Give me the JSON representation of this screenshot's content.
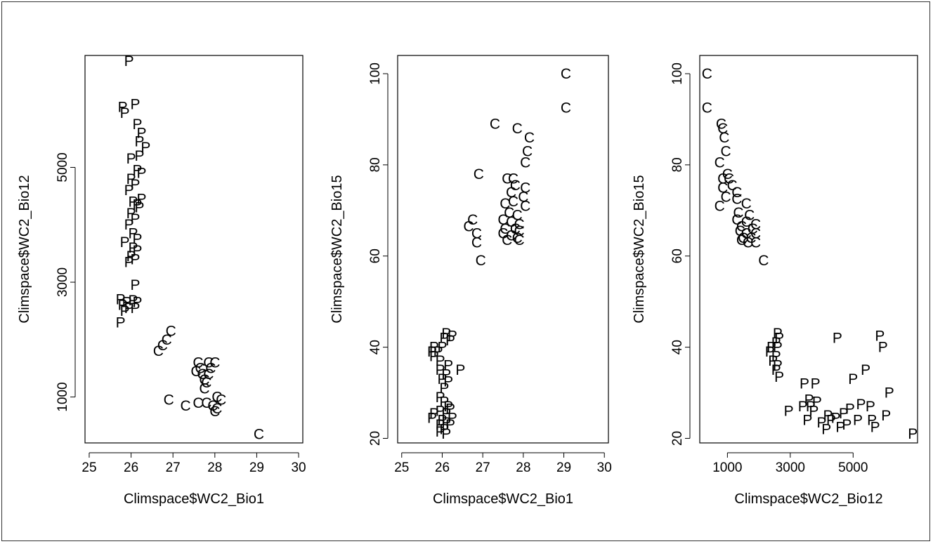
{
  "chart_data": [
    {
      "type": "scatter",
      "xlabel": "Climspace$WC2_Bio1",
      "ylabel": "Climspace$WC2_Bio12",
      "xlim": [
        24.9,
        30.1
      ],
      "ylim": [
        200,
        6950
      ],
      "xticks": [
        25,
        26,
        27,
        28,
        29,
        30
      ],
      "yticks": [
        1000,
        3000,
        5000
      ],
      "points": [
        {
          "x": 25.95,
          "y": 6850,
          "label": "P"
        },
        {
          "x": 25.8,
          "y": 6050,
          "label": "P"
        },
        {
          "x": 26.1,
          "y": 6100,
          "label": "P"
        },
        {
          "x": 25.85,
          "y": 5950,
          "label": "P"
        },
        {
          "x": 26.15,
          "y": 5750,
          "label": "P"
        },
        {
          "x": 26.25,
          "y": 5600,
          "label": "P"
        },
        {
          "x": 26.2,
          "y": 5450,
          "label": "P"
        },
        {
          "x": 26.35,
          "y": 5350,
          "label": "P"
        },
        {
          "x": 26.2,
          "y": 5200,
          "label": "P"
        },
        {
          "x": 26.0,
          "y": 5150,
          "label": "P"
        },
        {
          "x": 26.15,
          "y": 4950,
          "label": "P"
        },
        {
          "x": 26.25,
          "y": 4900,
          "label": "P"
        },
        {
          "x": 26.0,
          "y": 4800,
          "label": "P"
        },
        {
          "x": 26.1,
          "y": 4700,
          "label": "P"
        },
        {
          "x": 25.95,
          "y": 4600,
          "label": "P"
        },
        {
          "x": 26.25,
          "y": 4450,
          "label": "P"
        },
        {
          "x": 26.05,
          "y": 4400,
          "label": "P"
        },
        {
          "x": 26.15,
          "y": 4350,
          "label": "P"
        },
        {
          "x": 26.2,
          "y": 4300,
          "label": "P"
        },
        {
          "x": 26.0,
          "y": 4200,
          "label": "P"
        },
        {
          "x": 26.1,
          "y": 4100,
          "label": "P"
        },
        {
          "x": 25.95,
          "y": 4000,
          "label": "P"
        },
        {
          "x": 26.05,
          "y": 3850,
          "label": "P"
        },
        {
          "x": 26.15,
          "y": 3750,
          "label": "P"
        },
        {
          "x": 25.85,
          "y": 3700,
          "label": "P"
        },
        {
          "x": 26.05,
          "y": 3600,
          "label": "P"
        },
        {
          "x": 26.15,
          "y": 3550,
          "label": "P"
        },
        {
          "x": 26.0,
          "y": 3450,
          "label": "P"
        },
        {
          "x": 26.1,
          "y": 3400,
          "label": "P"
        },
        {
          "x": 25.95,
          "y": 3350,
          "label": "P"
        },
        {
          "x": 26.1,
          "y": 2950,
          "label": "P"
        },
        {
          "x": 25.75,
          "y": 2700,
          "label": "P"
        },
        {
          "x": 25.9,
          "y": 2650,
          "label": "P"
        },
        {
          "x": 26.05,
          "y": 2680,
          "label": "P"
        },
        {
          "x": 26.15,
          "y": 2650,
          "label": "P"
        },
        {
          "x": 25.8,
          "y": 2600,
          "label": "P"
        },
        {
          "x": 25.95,
          "y": 2550,
          "label": "P"
        },
        {
          "x": 26.1,
          "y": 2550,
          "label": "P"
        },
        {
          "x": 25.85,
          "y": 2500,
          "label": "P"
        },
        {
          "x": 25.75,
          "y": 2300,
          "label": "P"
        },
        {
          "x": 26.95,
          "y": 2150,
          "label": "C"
        },
        {
          "x": 26.85,
          "y": 2000,
          "label": "C"
        },
        {
          "x": 26.75,
          "y": 1900,
          "label": "C"
        },
        {
          "x": 26.65,
          "y": 1800,
          "label": "C"
        },
        {
          "x": 27.6,
          "y": 1600,
          "label": "C"
        },
        {
          "x": 27.85,
          "y": 1600,
          "label": "C"
        },
        {
          "x": 28.0,
          "y": 1600,
          "label": "C"
        },
        {
          "x": 27.65,
          "y": 1500,
          "label": "C"
        },
        {
          "x": 27.9,
          "y": 1500,
          "label": "C"
        },
        {
          "x": 27.55,
          "y": 1450,
          "label": "C"
        },
        {
          "x": 27.7,
          "y": 1400,
          "label": "C"
        },
        {
          "x": 27.85,
          "y": 1400,
          "label": "C"
        },
        {
          "x": 27.75,
          "y": 1300,
          "label": "C"
        },
        {
          "x": 27.8,
          "y": 1250,
          "label": "C"
        },
        {
          "x": 27.75,
          "y": 1150,
          "label": "C"
        },
        {
          "x": 26.9,
          "y": 950,
          "label": "C"
        },
        {
          "x": 27.6,
          "y": 900,
          "label": "C"
        },
        {
          "x": 27.8,
          "y": 900,
          "label": "C"
        },
        {
          "x": 28.05,
          "y": 1000,
          "label": "C"
        },
        {
          "x": 28.15,
          "y": 950,
          "label": "C"
        },
        {
          "x": 27.3,
          "y": 850,
          "label": "C"
        },
        {
          "x": 27.95,
          "y": 850,
          "label": "C"
        },
        {
          "x": 28.05,
          "y": 800,
          "label": "C"
        },
        {
          "x": 28.0,
          "y": 750,
          "label": "C"
        },
        {
          "x": 29.05,
          "y": 350,
          "label": "C"
        }
      ]
    },
    {
      "type": "scatter",
      "xlabel": "Climspace$WC2_Bio1",
      "ylabel": "Climspace$WC2_Bio15",
      "xlim": [
        24.9,
        30.1
      ],
      "ylim": [
        19,
        104
      ],
      "xticks": [
        25,
        26,
        27,
        28,
        29,
        30
      ],
      "yticks": [
        20,
        40,
        60,
        80,
        100
      ],
      "points": [
        {
          "x": 29.05,
          "y": 100,
          "label": "C"
        },
        {
          "x": 29.05,
          "y": 92.5,
          "label": "C"
        },
        {
          "x": 27.3,
          "y": 89,
          "label": "C"
        },
        {
          "x": 27.85,
          "y": 88,
          "label": "C"
        },
        {
          "x": 28.15,
          "y": 86,
          "label": "C"
        },
        {
          "x": 28.1,
          "y": 83,
          "label": "C"
        },
        {
          "x": 28.05,
          "y": 80.5,
          "label": "C"
        },
        {
          "x": 26.9,
          "y": 78,
          "label": "C"
        },
        {
          "x": 27.6,
          "y": 77,
          "label": "C"
        },
        {
          "x": 27.75,
          "y": 77,
          "label": "C"
        },
        {
          "x": 27.8,
          "y": 75.5,
          "label": "C"
        },
        {
          "x": 28.05,
          "y": 75,
          "label": "C"
        },
        {
          "x": 27.7,
          "y": 74,
          "label": "C"
        },
        {
          "x": 28.0,
          "y": 73,
          "label": "C"
        },
        {
          "x": 27.55,
          "y": 71.5,
          "label": "C"
        },
        {
          "x": 27.75,
          "y": 72,
          "label": "C"
        },
        {
          "x": 28.05,
          "y": 71,
          "label": "C"
        },
        {
          "x": 27.65,
          "y": 69.5,
          "label": "C"
        },
        {
          "x": 27.85,
          "y": 69,
          "label": "C"
        },
        {
          "x": 27.5,
          "y": 68,
          "label": "C"
        },
        {
          "x": 27.7,
          "y": 67.5,
          "label": "C"
        },
        {
          "x": 27.9,
          "y": 67,
          "label": "C"
        },
        {
          "x": 26.75,
          "y": 68,
          "label": "C"
        },
        {
          "x": 26.65,
          "y": 66.5,
          "label": "C"
        },
        {
          "x": 27.55,
          "y": 66,
          "label": "C"
        },
        {
          "x": 27.8,
          "y": 66,
          "label": "C"
        },
        {
          "x": 27.9,
          "y": 65.5,
          "label": "C"
        },
        {
          "x": 26.85,
          "y": 65,
          "label": "C"
        },
        {
          "x": 27.5,
          "y": 65,
          "label": "C"
        },
        {
          "x": 27.7,
          "y": 64.5,
          "label": "C"
        },
        {
          "x": 27.85,
          "y": 64,
          "label": "C"
        },
        {
          "x": 26.85,
          "y": 63,
          "label": "C"
        },
        {
          "x": 27.6,
          "y": 63.5,
          "label": "C"
        },
        {
          "x": 27.9,
          "y": 63.5,
          "label": "C"
        },
        {
          "x": 26.95,
          "y": 59,
          "label": "C"
        },
        {
          "x": 26.1,
          "y": 43,
          "label": "P"
        },
        {
          "x": 26.25,
          "y": 42.5,
          "label": "P"
        },
        {
          "x": 26.05,
          "y": 42,
          "label": "P"
        },
        {
          "x": 26.2,
          "y": 41.5,
          "label": "P"
        },
        {
          "x": 25.8,
          "y": 40,
          "label": "P"
        },
        {
          "x": 26.0,
          "y": 40,
          "label": "P"
        },
        {
          "x": 25.75,
          "y": 39,
          "label": "P"
        },
        {
          "x": 25.9,
          "y": 39,
          "label": "P"
        },
        {
          "x": 25.8,
          "y": 38,
          "label": "P"
        },
        {
          "x": 25.95,
          "y": 37,
          "label": "P"
        },
        {
          "x": 26.15,
          "y": 36,
          "label": "P"
        },
        {
          "x": 25.95,
          "y": 35,
          "label": "P"
        },
        {
          "x": 26.45,
          "y": 35,
          "label": "P"
        },
        {
          "x": 26.1,
          "y": 34,
          "label": "P"
        },
        {
          "x": 26.0,
          "y": 33,
          "label": "P"
        },
        {
          "x": 26.15,
          "y": 32.5,
          "label": "P"
        },
        {
          "x": 26.05,
          "y": 31,
          "label": "P"
        },
        {
          "x": 25.95,
          "y": 29,
          "label": "P"
        },
        {
          "x": 26.05,
          "y": 28,
          "label": "P"
        },
        {
          "x": 26.15,
          "y": 27,
          "label": "P"
        },
        {
          "x": 26.2,
          "y": 26.5,
          "label": "P"
        },
        {
          "x": 25.95,
          "y": 26,
          "label": "P"
        },
        {
          "x": 25.8,
          "y": 25.5,
          "label": "P"
        },
        {
          "x": 26.1,
          "y": 25.5,
          "label": "P"
        },
        {
          "x": 25.75,
          "y": 24.5,
          "label": "P"
        },
        {
          "x": 26.25,
          "y": 24.5,
          "label": "P"
        },
        {
          "x": 26.0,
          "y": 24,
          "label": "P"
        },
        {
          "x": 26.1,
          "y": 23.5,
          "label": "P"
        },
        {
          "x": 25.95,
          "y": 23,
          "label": "P"
        },
        {
          "x": 26.2,
          "y": 23,
          "label": "P"
        },
        {
          "x": 26.05,
          "y": 22,
          "label": "P"
        },
        {
          "x": 25.95,
          "y": 21.5,
          "label": "P"
        },
        {
          "x": 26.1,
          "y": 21,
          "label": "P"
        }
      ]
    },
    {
      "type": "scatter",
      "xlabel": "Climspace$WC2_Bio12",
      "ylabel": "Climspace$WC2_Bio15",
      "xlim": [
        120,
        7050
      ],
      "ylim": [
        19,
        104
      ],
      "xticks": [
        1000,
        3000,
        5000
      ],
      "yticks": [
        20,
        40,
        60,
        80,
        100
      ],
      "points": [
        {
          "x": 350,
          "y": 100,
          "label": "C"
        },
        {
          "x": 350,
          "y": 92.5,
          "label": "C"
        },
        {
          "x": 800,
          "y": 89,
          "label": "C"
        },
        {
          "x": 850,
          "y": 88,
          "label": "C"
        },
        {
          "x": 900,
          "y": 86,
          "label": "C"
        },
        {
          "x": 950,
          "y": 83,
          "label": "C"
        },
        {
          "x": 750,
          "y": 80.5,
          "label": "C"
        },
        {
          "x": 1000,
          "y": 78,
          "label": "C"
        },
        {
          "x": 850,
          "y": 77,
          "label": "C"
        },
        {
          "x": 1050,
          "y": 77,
          "label": "C"
        },
        {
          "x": 1150,
          "y": 75.5,
          "label": "C"
        },
        {
          "x": 850,
          "y": 75,
          "label": "C"
        },
        {
          "x": 1300,
          "y": 74,
          "label": "C"
        },
        {
          "x": 950,
          "y": 73,
          "label": "C"
        },
        {
          "x": 1300,
          "y": 72.5,
          "label": "C"
        },
        {
          "x": 1600,
          "y": 71.5,
          "label": "C"
        },
        {
          "x": 750,
          "y": 71,
          "label": "C"
        },
        {
          "x": 1350,
          "y": 69.5,
          "label": "C"
        },
        {
          "x": 1700,
          "y": 69,
          "label": "C"
        },
        {
          "x": 1300,
          "y": 68,
          "label": "C"
        },
        {
          "x": 1600,
          "y": 67.5,
          "label": "C"
        },
        {
          "x": 1900,
          "y": 67,
          "label": "C"
        },
        {
          "x": 1450,
          "y": 66.5,
          "label": "C"
        },
        {
          "x": 1800,
          "y": 66,
          "label": "C"
        },
        {
          "x": 1400,
          "y": 65.5,
          "label": "C"
        },
        {
          "x": 1600,
          "y": 65,
          "label": "C"
        },
        {
          "x": 1900,
          "y": 65,
          "label": "C"
        },
        {
          "x": 1500,
          "y": 64,
          "label": "C"
        },
        {
          "x": 1750,
          "y": 64,
          "label": "C"
        },
        {
          "x": 1450,
          "y": 63.5,
          "label": "C"
        },
        {
          "x": 1650,
          "y": 63,
          "label": "C"
        },
        {
          "x": 1900,
          "y": 63,
          "label": "C"
        },
        {
          "x": 2150,
          "y": 59,
          "label": "C"
        },
        {
          "x": 2600,
          "y": 43,
          "label": "P"
        },
        {
          "x": 2650,
          "y": 42,
          "label": "P"
        },
        {
          "x": 2550,
          "y": 41,
          "label": "P"
        },
        {
          "x": 2400,
          "y": 40,
          "label": "P"
        },
        {
          "x": 2600,
          "y": 40,
          "label": "P"
        },
        {
          "x": 2350,
          "y": 39,
          "label": "P"
        },
        {
          "x": 2550,
          "y": 38,
          "label": "P"
        },
        {
          "x": 2450,
          "y": 37,
          "label": "P"
        },
        {
          "x": 2600,
          "y": 36,
          "label": "P"
        },
        {
          "x": 2550,
          "y": 35,
          "label": "P"
        },
        {
          "x": 2650,
          "y": 33.5,
          "label": "P"
        },
        {
          "x": 4500,
          "y": 42,
          "label": "P"
        },
        {
          "x": 5850,
          "y": 42.5,
          "label": "P"
        },
        {
          "x": 5950,
          "y": 40,
          "label": "P"
        },
        {
          "x": 5400,
          "y": 35,
          "label": "P"
        },
        {
          "x": 5000,
          "y": 33,
          "label": "P"
        },
        {
          "x": 3450,
          "y": 32,
          "label": "P"
        },
        {
          "x": 3800,
          "y": 32,
          "label": "P"
        },
        {
          "x": 6150,
          "y": 30,
          "label": "P"
        },
        {
          "x": 3600,
          "y": 28.5,
          "label": "P"
        },
        {
          "x": 3850,
          "y": 28,
          "label": "P"
        },
        {
          "x": 3400,
          "y": 27,
          "label": "P"
        },
        {
          "x": 3650,
          "y": 27,
          "label": "P"
        },
        {
          "x": 5250,
          "y": 27.5,
          "label": "P"
        },
        {
          "x": 5550,
          "y": 27,
          "label": "P"
        },
        {
          "x": 4900,
          "y": 26.5,
          "label": "P"
        },
        {
          "x": 2950,
          "y": 26,
          "label": "P"
        },
        {
          "x": 3750,
          "y": 26,
          "label": "P"
        },
        {
          "x": 4700,
          "y": 25.5,
          "label": "P"
        },
        {
          "x": 4200,
          "y": 25,
          "label": "P"
        },
        {
          "x": 4450,
          "y": 24.5,
          "label": "P"
        },
        {
          "x": 6050,
          "y": 25,
          "label": "P"
        },
        {
          "x": 3550,
          "y": 24,
          "label": "P"
        },
        {
          "x": 4300,
          "y": 24,
          "label": "P"
        },
        {
          "x": 5150,
          "y": 24,
          "label": "P"
        },
        {
          "x": 5600,
          "y": 24,
          "label": "P"
        },
        {
          "x": 4000,
          "y": 23.5,
          "label": "P"
        },
        {
          "x": 4800,
          "y": 23,
          "label": "P"
        },
        {
          "x": 4600,
          "y": 22.5,
          "label": "P"
        },
        {
          "x": 5700,
          "y": 22.5,
          "label": "P"
        },
        {
          "x": 4150,
          "y": 22,
          "label": "P"
        },
        {
          "x": 6900,
          "y": 21,
          "label": "P"
        }
      ]
    }
  ]
}
